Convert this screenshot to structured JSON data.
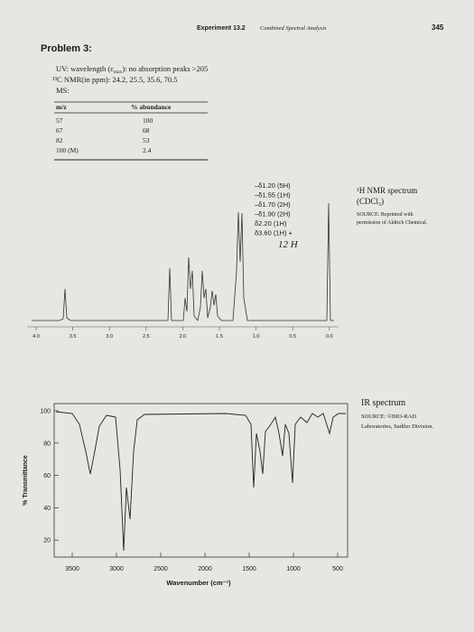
{
  "header": {
    "experiment": "Experiment 13.2",
    "subtitle": "Combined Spectral Analysis",
    "page": "345"
  },
  "problem": "Problem 3:",
  "uv": {
    "start": "UV: wavelength (ε",
    "sub": "max",
    "end": "): no absorption peaks >205"
  },
  "c13": "¹³C NMR(in ppm): 24.2, 25.5, 35.6, 70.5",
  "ms": {
    "label": "MS:",
    "headers": [
      "m/z",
      "% abundance"
    ],
    "rows": [
      [
        "57",
        "100"
      ],
      [
        "67",
        "68"
      ],
      [
        "82",
        "53"
      ],
      [
        "100 (M)",
        "2.4"
      ]
    ]
  },
  "nmr": {
    "peaks": [
      "–δ1.20 (5H)",
      "–δ1.55 (1H)",
      "–δ1.70 (2H)",
      "–δ1.90 (2H)",
      "δ2.20 (1H)",
      "δ3.60 (1H) +"
    ],
    "note": "12 H",
    "caption": "¹H NMR spectrum",
    "solvent": "(CDCl₃)",
    "source": [
      "SOURCE: Reprinted with",
      "permission of Aldrich Chemical."
    ],
    "xticks": [
      "4.0",
      "3.5",
      "3.0",
      "2.5",
      "2.0",
      "1.5",
      "1.0",
      "0.5",
      "0.0"
    ]
  },
  "ir": {
    "caption": "IR spectrum",
    "source": [
      "SOURCE: ©BIO-RAD",
      "Laboratories, Sadtler Division."
    ],
    "yticks": [
      100,
      80,
      60,
      40,
      20
    ],
    "xticks": [
      3500,
      3000,
      2500,
      2000,
      1500,
      1000,
      500
    ],
    "xlabel": "Wavenumber (cm⁻¹)",
    "ylabel": "% Transmittance"
  }
}
